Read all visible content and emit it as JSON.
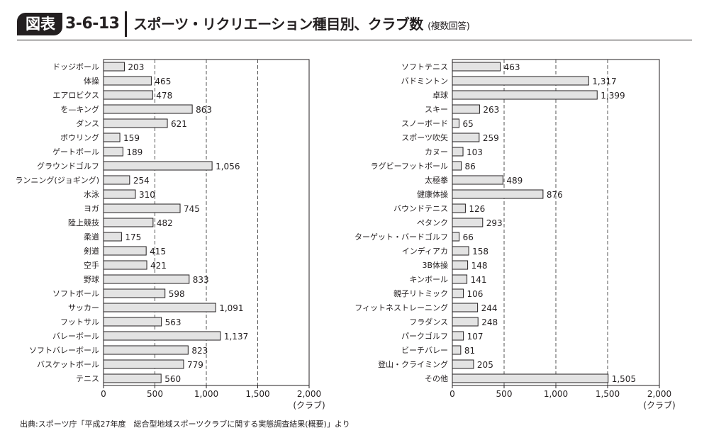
{
  "header": {
    "badge": "図表",
    "number": "3-6-13",
    "title": "スポーツ・リクリエーション種目別、クラブ数",
    "note": "(複数回答)"
  },
  "source": "出典:スポーツ庁「平成27年度　総合型地域スポーツクラブに関する実態調査結果(概要)」より",
  "colors": {
    "bar_fill": "#e3e3e3",
    "bar_stroke": "#231f20",
    "grid": "#555555"
  },
  "chart_data": [
    {
      "type": "bar",
      "orientation": "horizontal",
      "xlim": [
        0,
        2000
      ],
      "xticks": [
        "0",
        "500",
        "1,000",
        "1,500",
        "2,000"
      ],
      "xlabel": "(クラブ)",
      "grid": "vertical dashed",
      "categories": [
        "ドッジボール",
        "体操",
        "エアロビクス",
        "を—キング",
        "ダンス",
        "ボウリング",
        "ゲートボール",
        "グラウンドゴルフ",
        "ランニング(ジョギング)",
        "水泳",
        "ヨガ",
        "陸上競技",
        "柔道",
        "剣道",
        "空手",
        "野球",
        "ソフトボール",
        "サッカー",
        "フットサル",
        "バレーボール",
        "ソフトバレーボール",
        "バスケットボール",
        "テニス"
      ],
      "values": [
        203,
        465,
        478,
        863,
        621,
        159,
        189,
        1056,
        254,
        310,
        745,
        482,
        175,
        415,
        421,
        833,
        598,
        1091,
        563,
        1137,
        823,
        779,
        560
      ],
      "labels": [
        "203",
        "465",
        "478",
        "863",
        "621",
        "159",
        "189",
        "1,056",
        "254",
        "310",
        "745",
        "482",
        "175",
        "415",
        "421",
        "833",
        "598",
        "1,091",
        "563",
        "1,137",
        "823",
        "779",
        "560"
      ]
    },
    {
      "type": "bar",
      "orientation": "horizontal",
      "xlim": [
        0,
        2000
      ],
      "xticks": [
        "0",
        "500",
        "1,000",
        "1,500",
        "2,000"
      ],
      "xlabel": "(クラブ)",
      "grid": "vertical dashed",
      "categories": [
        "ソフトテニス",
        "バドミントン",
        "卓球",
        "スキー",
        "スノーボード",
        "スポーツ吹矢",
        "カヌー",
        "ラグビーフットボール",
        "太極拳",
        "健康体操",
        "バウンドテニス",
        "ペタンク",
        "ターゲット・バードゴルフ",
        "インディアカ",
        "3B体操",
        "キンボール",
        "親子リトミック",
        "フィットネストレーニング",
        "フラダンス",
        "パークゴルフ",
        "ビーチバレー",
        "登山・クライミング",
        "その他"
      ],
      "values": [
        463,
        1317,
        1399,
        263,
        65,
        259,
        103,
        86,
        489,
        876,
        126,
        293,
        66,
        158,
        148,
        141,
        106,
        244,
        248,
        107,
        81,
        205,
        1505
      ],
      "labels": [
        "463",
        "1,317",
        "1,399",
        "263",
        "65",
        "259",
        "103",
        "86",
        "489",
        "876",
        "126",
        "293",
        "66",
        "158",
        "148",
        "141",
        "106",
        "244",
        "248",
        "107",
        "81",
        "205",
        "1,505"
      ]
    }
  ]
}
